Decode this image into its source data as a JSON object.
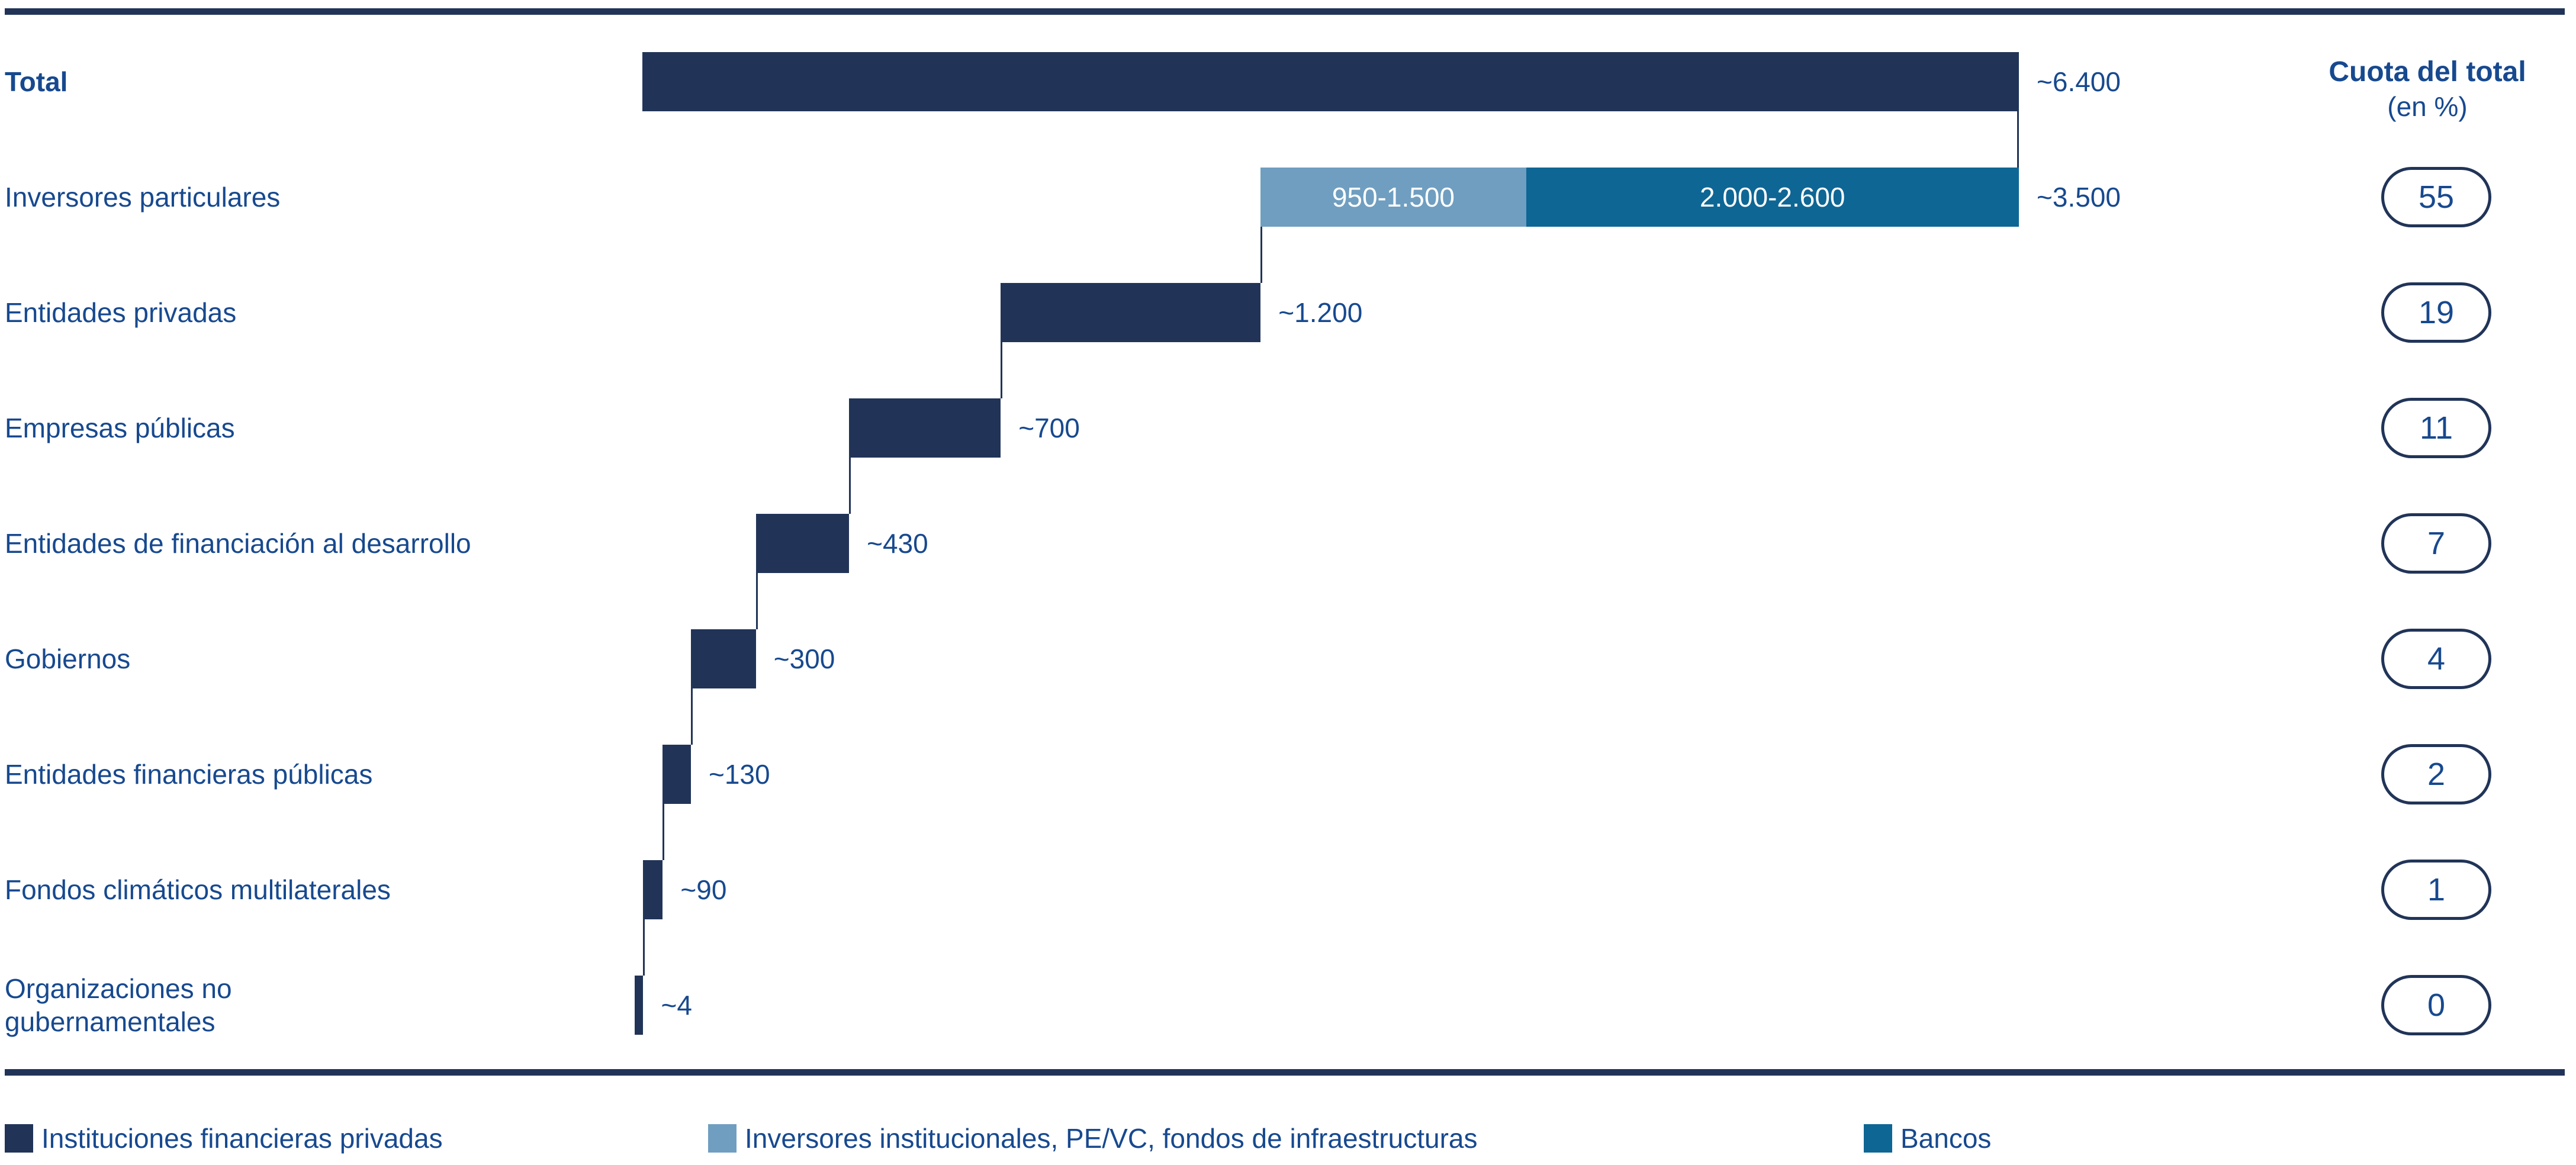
{
  "colors": {
    "navy": "#213458",
    "light_blue": "#6f9ec0",
    "medium_blue": "#0e6695",
    "text_blue": "#17498f"
  },
  "share_header": {
    "title": "Cuota del total",
    "subtitle": "(en %)"
  },
  "chart_data": {
    "type": "bar",
    "subtype": "horizontal-waterfall",
    "title": "",
    "xlabel": "",
    "ylabel": "",
    "axis_visible": false,
    "grid": false,
    "rows": [
      {
        "label": "Total",
        "bold": true,
        "value": 6400,
        "value_label": "~6.400",
        "share": null,
        "segments": [
          {
            "color_key": "navy",
            "value": 6354,
            "label": ""
          }
        ]
      },
      {
        "label": "Inversores particulares",
        "bold": false,
        "value": 3500,
        "value_label": "~3.500",
        "share": 55,
        "segments": [
          {
            "color_key": "light_blue",
            "value": 1225,
            "label": "950-1.500"
          },
          {
            "color_key": "medium_blue",
            "value": 2275,
            "label": "2.000-2.600"
          }
        ]
      },
      {
        "label": "Entidades privadas",
        "bold": false,
        "value": 1200,
        "value_label": "~1.200",
        "share": 19,
        "segments": [
          {
            "color_key": "navy",
            "value": 1200,
            "label": ""
          }
        ]
      },
      {
        "label": "Empresas públicas",
        "bold": false,
        "value": 700,
        "value_label": "~700",
        "share": 11,
        "segments": [
          {
            "color_key": "navy",
            "value": 700,
            "label": ""
          }
        ]
      },
      {
        "label": "Entidades de financiación al desarrollo",
        "bold": false,
        "value": 430,
        "value_label": "~430",
        "share": 7,
        "segments": [
          {
            "color_key": "navy",
            "value": 430,
            "label": ""
          }
        ]
      },
      {
        "label": "Gobiernos",
        "bold": false,
        "value": 300,
        "value_label": "~300",
        "share": 4,
        "segments": [
          {
            "color_key": "navy",
            "value": 300,
            "label": ""
          }
        ]
      },
      {
        "label": "Entidades financieras públicas",
        "bold": false,
        "value": 130,
        "value_label": "~130",
        "share": 2,
        "segments": [
          {
            "color_key": "navy",
            "value": 130,
            "label": ""
          }
        ]
      },
      {
        "label": "Fondos climáticos multilaterales",
        "bold": false,
        "value": 90,
        "value_label": "~90",
        "share": 1,
        "segments": [
          {
            "color_key": "navy",
            "value": 90,
            "label": ""
          }
        ]
      },
      {
        "label": "Organizaciones no\ngubernamentales",
        "bold": false,
        "value": 4,
        "value_label": "~4",
        "share": 0,
        "segments": [
          {
            "color_key": "navy",
            "value": 4,
            "label": ""
          }
        ]
      }
    ]
  },
  "legend": [
    {
      "color_key": "navy",
      "label": "Instituciones financieras privadas"
    },
    {
      "color_key": "light_blue",
      "label": "Inversores institucionales, PE/VC, fondos de infraestructuras"
    },
    {
      "color_key": "medium_blue",
      "label": "Bancos"
    }
  ]
}
